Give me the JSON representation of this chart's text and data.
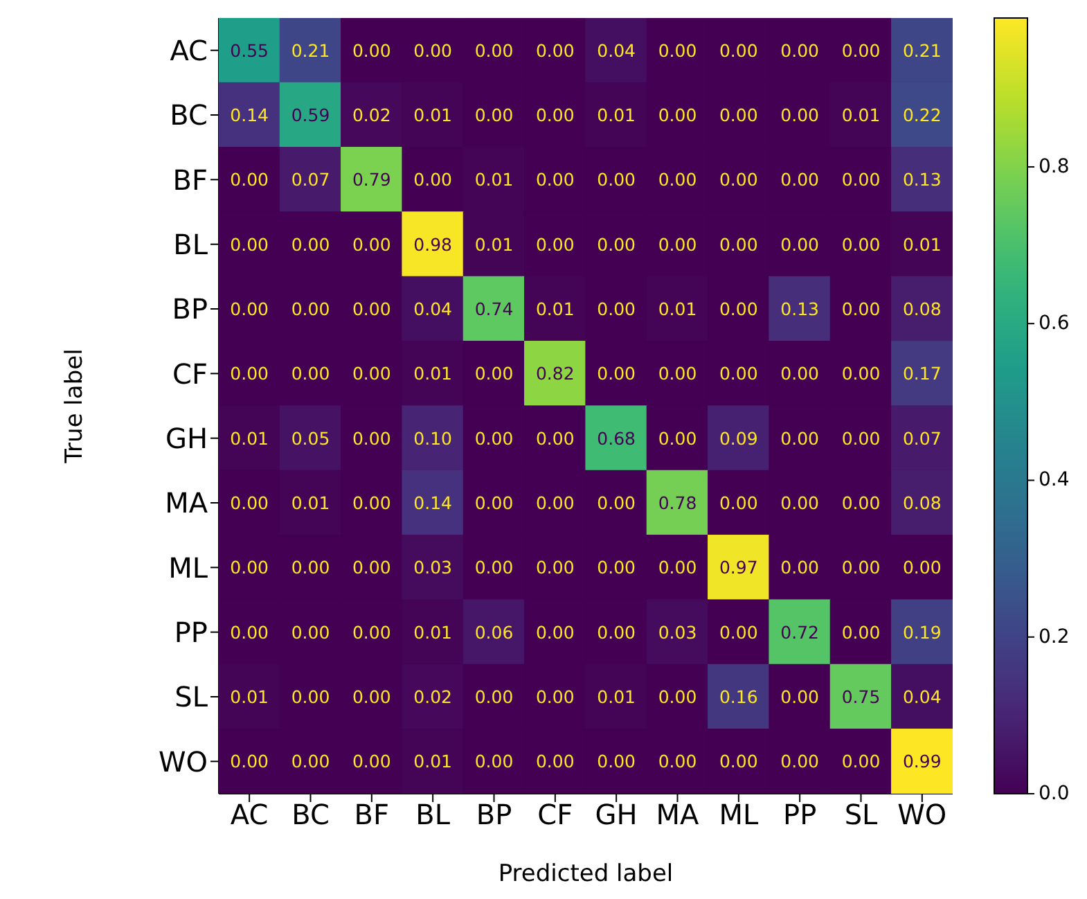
{
  "chart_data": {
    "type": "heatmap",
    "xlabel": "Predicted label",
    "ylabel": "True label",
    "categories": [
      "AC",
      "BC",
      "BF",
      "BL",
      "BP",
      "CF",
      "GH",
      "MA",
      "ML",
      "PP",
      "SL",
      "WO"
    ],
    "y_categories": [
      "AC",
      "BC",
      "BF",
      "BL",
      "BP",
      "CF",
      "GH",
      "MA",
      "ML",
      "PP",
      "SL",
      "WO"
    ],
    "cells": [
      [
        0.55,
        0.21,
        0.0,
        0.0,
        0.0,
        0.0,
        0.04,
        0.0,
        0.0,
        0.0,
        0.0,
        0.21
      ],
      [
        0.14,
        0.59,
        0.02,
        0.01,
        0.0,
        0.0,
        0.01,
        0.0,
        0.0,
        0.0,
        0.01,
        0.22
      ],
      [
        0.0,
        0.07,
        0.79,
        0.0,
        0.01,
        0.0,
        0.0,
        0.0,
        0.0,
        0.0,
        0.0,
        0.13
      ],
      [
        0.0,
        0.0,
        0.0,
        0.98,
        0.01,
        0.0,
        0.0,
        0.0,
        0.0,
        0.0,
        0.0,
        0.01
      ],
      [
        0.0,
        0.0,
        0.0,
        0.04,
        0.74,
        0.01,
        0.0,
        0.01,
        0.0,
        0.13,
        0.0,
        0.08
      ],
      [
        0.0,
        0.0,
        0.0,
        0.01,
        0.0,
        0.82,
        0.0,
        0.0,
        0.0,
        0.0,
        0.0,
        0.17
      ],
      [
        0.01,
        0.05,
        0.0,
        0.1,
        0.0,
        0.0,
        0.68,
        0.0,
        0.09,
        0.0,
        0.0,
        0.07
      ],
      [
        0.0,
        0.01,
        0.0,
        0.14,
        0.0,
        0.0,
        0.0,
        0.78,
        0.0,
        0.0,
        0.0,
        0.08
      ],
      [
        0.0,
        0.0,
        0.0,
        0.03,
        0.0,
        0.0,
        0.0,
        0.0,
        0.97,
        0.0,
        0.0,
        0.0
      ],
      [
        0.0,
        0.0,
        0.0,
        0.01,
        0.06,
        0.0,
        0.0,
        0.03,
        0.0,
        0.72,
        0.0,
        0.19
      ],
      [
        0.01,
        0.0,
        0.0,
        0.02,
        0.0,
        0.0,
        0.01,
        0.0,
        0.16,
        0.0,
        0.75,
        0.04
      ],
      [
        0.0,
        0.0,
        0.0,
        0.01,
        0.0,
        0.0,
        0.0,
        0.0,
        0.0,
        0.0,
        0.0,
        0.99
      ]
    ],
    "cell_labels": [
      [
        "0.55",
        "0.21",
        "0.00",
        "0.00",
        "0.00",
        "0.00",
        "0.04",
        "0.00",
        "0.00",
        "0.00",
        "0.00",
        "0.21"
      ],
      [
        "0.14",
        "0.59",
        "0.02",
        "0.01",
        "0.00",
        "0.00",
        "0.01",
        "0.00",
        "0.00",
        "0.00",
        "0.01",
        "0.22"
      ],
      [
        "0.00",
        "0.07",
        "0.79",
        "0.00",
        "0.01",
        "0.00",
        "0.00",
        "0.00",
        "0.00",
        "0.00",
        "0.00",
        "0.13"
      ],
      [
        "0.00",
        "0.00",
        "0.00",
        "0.98",
        "0.01",
        "0.00",
        "0.00",
        "0.00",
        "0.00",
        "0.00",
        "0.00",
        "0.01"
      ],
      [
        "0.00",
        "0.00",
        "0.00",
        "0.04",
        "0.74",
        "0.01",
        "0.00",
        "0.01",
        "0.00",
        "0.13",
        "0.00",
        "0.08"
      ],
      [
        "0.00",
        "0.00",
        "0.00",
        "0.01",
        "0.00",
        "0.82",
        "0.00",
        "0.00",
        "0.00",
        "0.00",
        "0.00",
        "0.17"
      ],
      [
        "0.01",
        "0.05",
        "0.00",
        "0.10",
        "0.00",
        "0.00",
        "0.68",
        "0.00",
        "0.09",
        "0.00",
        "0.00",
        "0.07"
      ],
      [
        "0.00",
        "0.01",
        "0.00",
        "0.14",
        "0.00",
        "0.00",
        "0.00",
        "0.78",
        "0.00",
        "0.00",
        "0.00",
        "0.08"
      ],
      [
        "0.00",
        "0.00",
        "0.00",
        "0.03",
        "0.00",
        "0.00",
        "0.00",
        "0.00",
        "0.97",
        "0.00",
        "0.00",
        "0.00"
      ],
      [
        "0.00",
        "0.00",
        "0.00",
        "0.01",
        "0.06",
        "0.00",
        "0.00",
        "0.03",
        "0.00",
        "0.72",
        "0.00",
        "0.19"
      ],
      [
        "0.01",
        "0.00",
        "0.00",
        "0.02",
        "0.00",
        "0.00",
        "0.01",
        "0.00",
        "0.16",
        "0.00",
        "0.75",
        "0.04"
      ],
      [
        "0.00",
        "0.00",
        "0.00",
        "0.01",
        "0.00",
        "0.00",
        "0.00",
        "0.00",
        "0.00",
        "0.00",
        "0.00",
        "0.99"
      ]
    ],
    "clim": [
      0,
      0.99
    ],
    "cticks": [
      {
        "value": 0,
        "label": "0.0"
      },
      {
        "value": 0.2,
        "label": "0.2"
      },
      {
        "value": 0.4,
        "label": "0.4"
      },
      {
        "value": 0.6,
        "label": "0.6"
      },
      {
        "value": 0.8,
        "label": "0.8"
      }
    ]
  }
}
